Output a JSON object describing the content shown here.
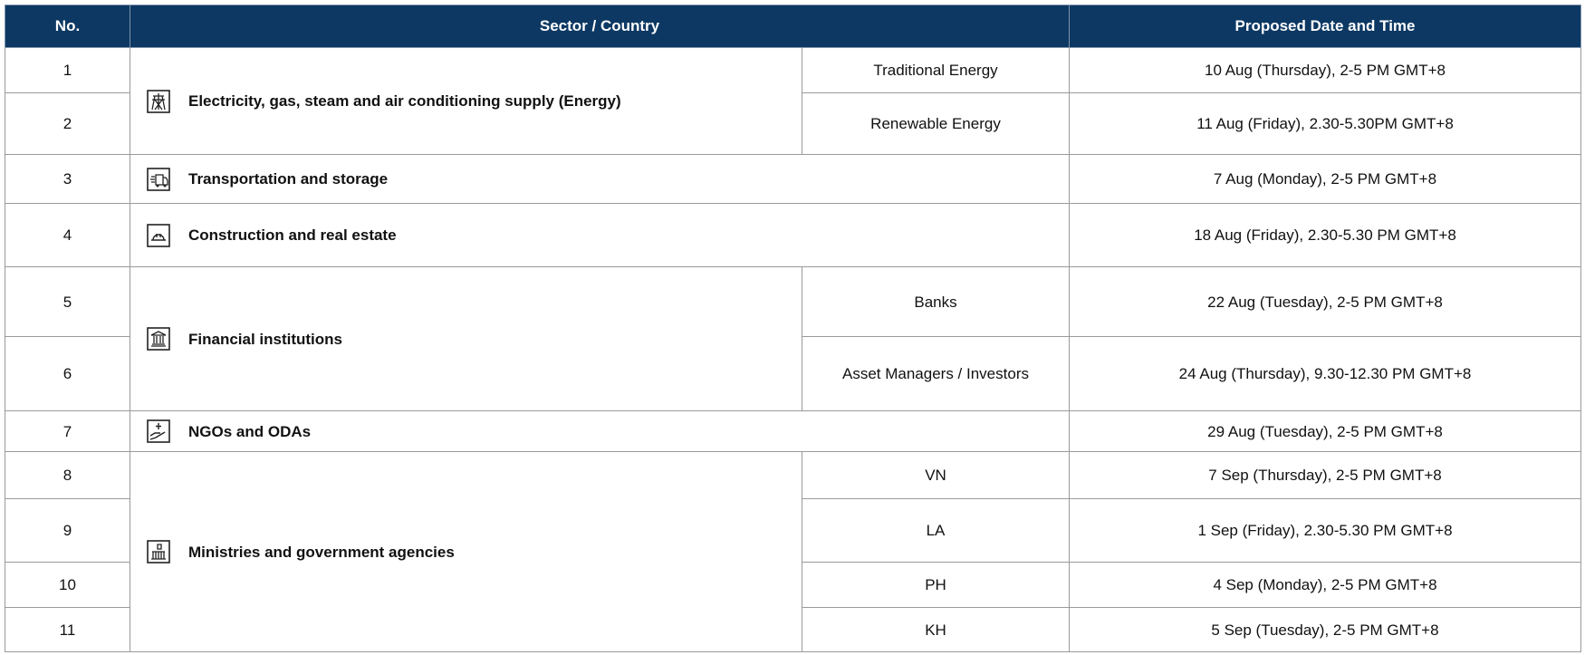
{
  "header": {
    "no": "No.",
    "sector": "Sector / Country",
    "date": "Proposed Date and Time"
  },
  "sectors": [
    {
      "name": "Electricity, gas, steam and air conditioning supply (Energy)",
      "entries": [
        {
          "no": "1",
          "sub": "Traditional Energy",
          "date": "10 Aug (Thursday), 2-5 PM GMT+8"
        },
        {
          "no": "2",
          "sub": "Renewable Energy",
          "date": "11 Aug (Friday), 2.30-5.30PM GMT+8"
        }
      ]
    },
    {
      "name": "Transportation and storage",
      "entries": [
        {
          "no": "3",
          "date": "7 Aug (Monday), 2-5 PM GMT+8"
        }
      ]
    },
    {
      "name": "Construction and real estate",
      "entries": [
        {
          "no": "4",
          "date": "18 Aug (Friday), 2.30-5.30 PM GMT+8"
        }
      ]
    },
    {
      "name": "Financial institutions",
      "entries": [
        {
          "no": "5",
          "sub": "Banks",
          "date": "22 Aug (Tuesday), 2-5 PM GMT+8"
        },
        {
          "no": "6",
          "sub": "Asset Managers / Investors",
          "date": "24 Aug (Thursday), 9.30-12.30 PM GMT+8"
        }
      ]
    },
    {
      "name": "NGOs and ODAs",
      "entries": [
        {
          "no": "7",
          "date": "29 Aug (Tuesday), 2-5 PM GMT+8"
        }
      ]
    },
    {
      "name": "Ministries and government agencies",
      "entries": [
        {
          "no": "8",
          "sub": "VN",
          "date": "7 Sep (Thursday), 2-5 PM GMT+8"
        },
        {
          "no": "9",
          "sub": "LA",
          "date": "1 Sep (Friday), 2.30-5.30 PM GMT+8"
        },
        {
          "no": "10",
          "sub": "PH",
          "date": "4 Sep (Monday), 2-5 PM GMT+8"
        },
        {
          "no": "11",
          "sub": "KH",
          "date": "5 Sep (Tuesday), 2-5 PM GMT+8"
        }
      ]
    }
  ]
}
